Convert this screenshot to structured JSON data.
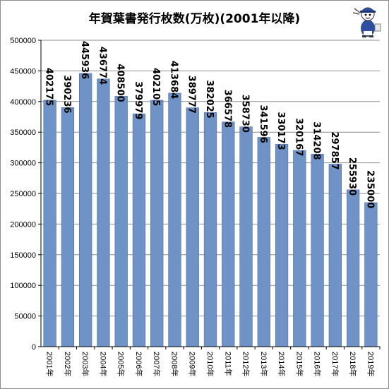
{
  "chart_data": {
    "type": "bar",
    "title": "年賀葉書発行枚数(万枚)(2001年以降)",
    "categories": [
      "2001年",
      "2002年",
      "2003年",
      "2004年",
      "2005年",
      "2006年",
      "2007年",
      "2008年",
      "2009年",
      "2010年",
      "2011年",
      "2012年",
      "2013年",
      "2014年",
      "2015年",
      "2016年",
      "2017年",
      "2018年",
      "2019年"
    ],
    "values": [
      402175,
      390236,
      445936,
      436774,
      408500,
      379979,
      402105,
      413684,
      389777,
      382025,
      366578,
      358730,
      341596,
      330173,
      320167,
      314208,
      297857,
      255930,
      235000
    ],
    "ylim": [
      0,
      500000
    ],
    "yticks": [
      0,
      50000,
      100000,
      150000,
      200000,
      250000,
      300000,
      350000,
      400000,
      450000,
      500000
    ],
    "grid": true,
    "bar_color": "#6f93c7",
    "bar_edge_color": "#4a6fa5",
    "xlabel": "",
    "ylabel": ""
  },
  "mascot_icon": "mascot-character-icon"
}
